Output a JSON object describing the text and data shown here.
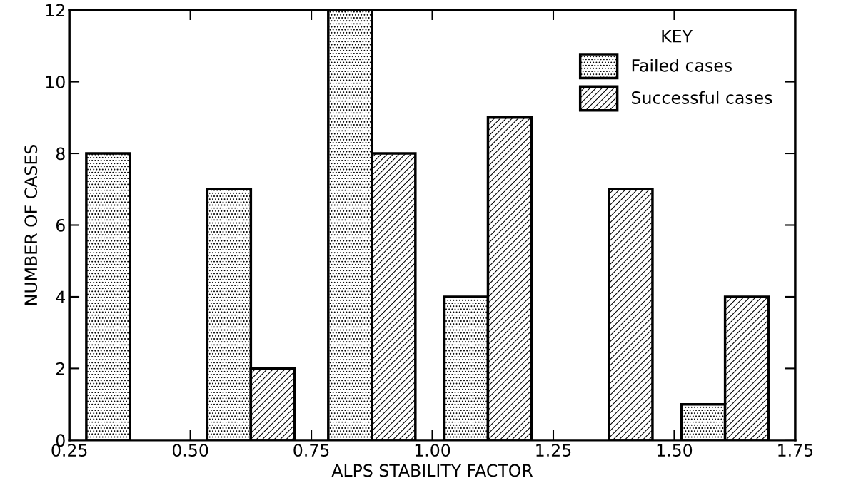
{
  "chart_data": {
    "type": "bar",
    "xlabel": "ALPS STABILITY FACTOR",
    "ylabel": "NUMBER OF CASES",
    "legend_title": "KEY",
    "legend": "top right",
    "grid": false,
    "xlim": [
      0.25,
      1.75
    ],
    "xticks": [
      {
        "value": 0.25,
        "label": "0.25"
      },
      {
        "value": 0.5,
        "label": "0.50"
      },
      {
        "value": 0.75,
        "label": "0.75"
      },
      {
        "value": 1.0,
        "label": "1.00"
      },
      {
        "value": 1.25,
        "label": "1.25"
      },
      {
        "value": 1.5,
        "label": "1.50"
      },
      {
        "value": 1.75,
        "label": "1.75"
      }
    ],
    "ylim": [
      0,
      12
    ],
    "yticks": [
      0,
      2,
      4,
      6,
      8,
      10,
      12
    ],
    "series": [
      {
        "name": "Failed cases",
        "color": "#000000",
        "x": [
          0.33,
          0.58,
          0.83,
          1.07,
          1.56
        ],
        "values": [
          8,
          7,
          12,
          4,
          1
        ]
      },
      {
        "name": "Successful cases",
        "color": "#000000",
        "x": [
          0.67,
          0.92,
          1.16,
          1.41,
          1.65
        ],
        "values": [
          2,
          8,
          9,
          7,
          4
        ]
      }
    ]
  }
}
